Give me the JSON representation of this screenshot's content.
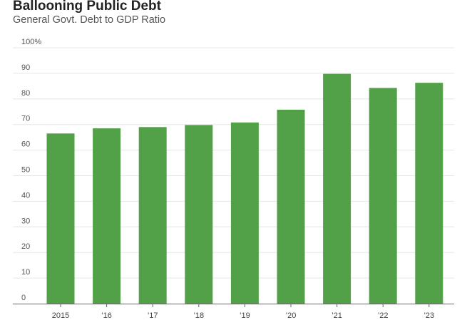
{
  "chart_data": {
    "type": "bar",
    "title": "Ballooning Public Debt",
    "subtitle": "General Govt. Debt to GDP Ratio",
    "categories": [
      "2015",
      "’16",
      "’17",
      "’18",
      "’19",
      "’20",
      "’21",
      "’22",
      "’23"
    ],
    "values": [
      66.5,
      68.5,
      69,
      69.8,
      70.8,
      75.8,
      89.8,
      84.3,
      86.3
    ],
    "ylim": [
      0,
      100
    ],
    "yticks": [
      {
        "value": 100,
        "label": "100%"
      },
      {
        "value": 90,
        "label": "90"
      },
      {
        "value": 80,
        "label": "80"
      },
      {
        "value": 70,
        "label": "70"
      },
      {
        "value": 60,
        "label": "60"
      },
      {
        "value": 50,
        "label": "50"
      },
      {
        "value": 40,
        "label": "40"
      },
      {
        "value": 30,
        "label": "30"
      },
      {
        "value": 20,
        "label": "20"
      },
      {
        "value": 10,
        "label": "10"
      },
      {
        "value": 0,
        "label": "0"
      }
    ],
    "grid": true,
    "bar_color": "#52a047",
    "grid_color": "#e6e6e6",
    "axis_color": "#666666"
  }
}
